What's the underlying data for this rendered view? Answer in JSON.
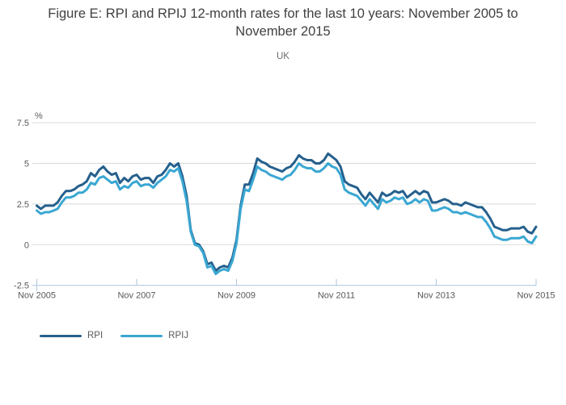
{
  "header": {
    "title": "Figure E: RPI and RPIJ 12-month rates for the last 10 years: November 2005 to November 2015",
    "subtitle": "UK"
  },
  "colors": {
    "rpi": "#25608d",
    "rpij": "#3aa7d2",
    "gridline": "#d9d9d9",
    "axis": "#aec6da",
    "label_text": "#595959",
    "title_text": "#414042"
  },
  "chart_data": {
    "type": "line",
    "title": "Figure E: RPI and RPIJ 12-month rates for the last 10 years: November 2005 to November 2015",
    "subtitle": "UK",
    "unit_label": "%",
    "xlabel": "",
    "ylabel": "%",
    "ylim": [
      -2.5,
      7.5
    ],
    "grid": "horizontal",
    "legend_position": "bottom-left",
    "x_start": "Nov 2005",
    "x_end": "Nov 2015",
    "x_months_total": 120,
    "yticks": [
      {
        "label": "7.5",
        "value": 7.5
      },
      {
        "label": "5",
        "value": 5
      },
      {
        "label": "2.5",
        "value": 2.5
      },
      {
        "label": "0",
        "value": 0
      },
      {
        "label": "-2.5",
        "value": -2.5
      }
    ],
    "xticks": [
      {
        "label": "Nov 2005",
        "month": 0
      },
      {
        "label": "Nov 2007",
        "month": 24
      },
      {
        "label": "Nov 2009",
        "month": 48
      },
      {
        "label": "Nov 2011",
        "month": 72
      },
      {
        "label": "Nov 2013",
        "month": 96
      },
      {
        "label": "Nov 2015",
        "month": 120
      }
    ],
    "series": [
      {
        "name": "RPI",
        "color": "#25608d",
        "values": [
          2.4,
          2.2,
          2.4,
          2.4,
          2.4,
          2.6,
          3.0,
          3.3,
          3.3,
          3.4,
          3.6,
          3.7,
          3.9,
          4.4,
          4.2,
          4.6,
          4.8,
          4.5,
          4.3,
          4.4,
          3.8,
          4.1,
          3.9,
          4.2,
          4.3,
          4.0,
          4.1,
          4.1,
          3.8,
          4.2,
          4.3,
          4.6,
          5.0,
          4.8,
          5.0,
          4.2,
          3.0,
          0.9,
          0.1,
          0.0,
          -0.4,
          -1.2,
          -1.1,
          -1.6,
          -1.4,
          -1.3,
          -1.4,
          -0.8,
          0.3,
          2.4,
          3.7,
          3.7,
          4.4,
          5.3,
          5.1,
          5.0,
          4.8,
          4.7,
          4.6,
          4.5,
          4.7,
          4.8,
          5.1,
          5.5,
          5.3,
          5.2,
          5.2,
          5.0,
          5.0,
          5.2,
          5.6,
          5.4,
          5.2,
          4.8,
          3.9,
          3.7,
          3.6,
          3.5,
          3.1,
          2.8,
          3.2,
          2.9,
          2.6,
          3.2,
          3.0,
          3.1,
          3.3,
          3.2,
          3.3,
          2.9,
          3.1,
          3.3,
          3.1,
          3.3,
          3.2,
          2.6,
          2.6,
          2.7,
          2.8,
          2.7,
          2.5,
          2.5,
          2.4,
          2.6,
          2.5,
          2.4,
          2.3,
          2.3,
          2.0,
          1.6,
          1.1,
          1.0,
          0.9,
          0.9,
          1.0,
          1.0,
          1.0,
          1.1,
          0.8,
          0.7,
          1.1
        ]
      },
      {
        "name": "RPIJ",
        "color": "#3aa7d2",
        "values": [
          2.1,
          1.9,
          2.0,
          2.0,
          2.1,
          2.2,
          2.6,
          2.9,
          2.9,
          3.0,
          3.2,
          3.2,
          3.4,
          3.8,
          3.7,
          4.1,
          4.2,
          4.0,
          3.8,
          3.9,
          3.4,
          3.6,
          3.5,
          3.8,
          3.9,
          3.6,
          3.7,
          3.7,
          3.5,
          3.8,
          4.0,
          4.2,
          4.6,
          4.5,
          4.7,
          3.9,
          2.7,
          0.8,
          0.0,
          -0.1,
          -0.5,
          -1.4,
          -1.3,
          -1.8,
          -1.6,
          -1.5,
          -1.6,
          -1.0,
          0.1,
          2.2,
          3.4,
          3.3,
          4.0,
          4.8,
          4.6,
          4.5,
          4.3,
          4.2,
          4.1,
          4.0,
          4.2,
          4.3,
          4.6,
          5.0,
          4.8,
          4.7,
          4.7,
          4.5,
          4.5,
          4.7,
          5.0,
          4.8,
          4.7,
          4.3,
          3.4,
          3.2,
          3.1,
          3.0,
          2.7,
          2.4,
          2.8,
          2.5,
          2.2,
          2.8,
          2.6,
          2.7,
          2.9,
          2.8,
          2.9,
          2.5,
          2.6,
          2.8,
          2.6,
          2.8,
          2.7,
          2.1,
          2.1,
          2.2,
          2.3,
          2.2,
          2.0,
          2.0,
          1.9,
          2.0,
          1.9,
          1.8,
          1.7,
          1.7,
          1.4,
          1.0,
          0.5,
          0.4,
          0.3,
          0.3,
          0.4,
          0.4,
          0.4,
          0.5,
          0.2,
          0.1,
          0.5
        ]
      }
    ]
  }
}
